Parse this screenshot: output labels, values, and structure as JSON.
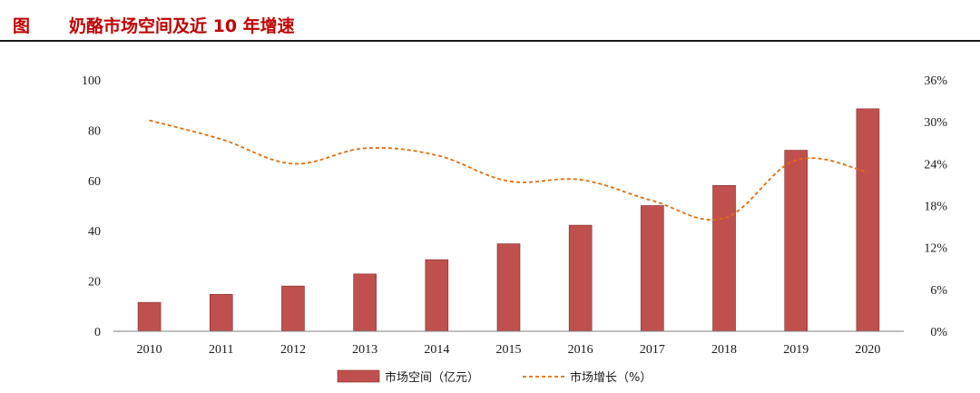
{
  "header": {
    "label": "图",
    "title": "奶酪市场空间及近 10 年增速"
  },
  "colors": {
    "accent": "#c00000",
    "bar": "#c0504d",
    "bar_edge": "#7f2b29",
    "line": "#e36c09"
  },
  "chart_data": {
    "type": "bar",
    "categories": [
      "2010",
      "2011",
      "2012",
      "2013",
      "2014",
      "2015",
      "2016",
      "2017",
      "2018",
      "2019",
      "2020"
    ],
    "series": [
      {
        "name": "市场空间（亿元）",
        "type": "bar",
        "axis": "left",
        "values": [
          11.5,
          14.7,
          18.0,
          22.8,
          28.5,
          34.8,
          42.2,
          50.0,
          58.0,
          72.0,
          88.5
        ]
      },
      {
        "name": "市场增长（%）",
        "type": "line",
        "style": "dashed",
        "axis": "right",
        "values": [
          30.2,
          27.5,
          24.0,
          26.2,
          25.2,
          21.5,
          21.7,
          18.7,
          16.2,
          24.5,
          22.8
        ]
      }
    ],
    "y_left": {
      "lim": [
        0,
        100
      ],
      "ticks": [
        "0",
        "20",
        "40",
        "60",
        "80",
        "100"
      ],
      "tick_values": [
        0,
        20,
        40,
        60,
        80,
        100
      ]
    },
    "y_right": {
      "lim": [
        0,
        36
      ],
      "ticks": [
        "0%",
        "6%",
        "12%",
        "18%",
        "24%",
        "30%",
        "36%"
      ],
      "tick_values": [
        0,
        6,
        12,
        18,
        24,
        30,
        36
      ]
    },
    "grid": false,
    "legend": "bottom-center"
  }
}
